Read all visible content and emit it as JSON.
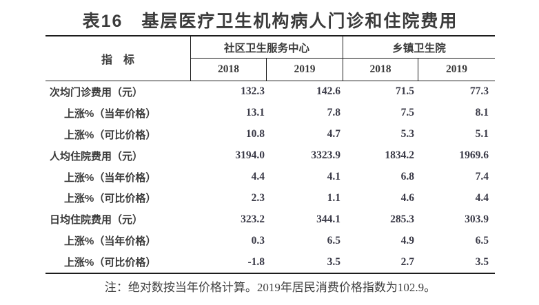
{
  "title": "表16　基层医疗卫生机构病人门诊和住院费用",
  "table": {
    "indicator_header": "指　标",
    "groups": [
      {
        "label": "社区卫生服务中心",
        "years": [
          "2018",
          "2019"
        ]
      },
      {
        "label": "乡镇卫生院",
        "years": [
          "2018",
          "2019"
        ]
      }
    ],
    "rows": [
      {
        "label": "次均门诊费用（元）",
        "indent": false,
        "values": [
          "132.3",
          "142.6",
          "71.5",
          "77.3"
        ]
      },
      {
        "label": "上涨%（当年价格）",
        "indent": true,
        "values": [
          "13.1",
          "7.8",
          "7.5",
          "8.1"
        ]
      },
      {
        "label": "上涨%（可比价格）",
        "indent": true,
        "values": [
          "10.8",
          "4.7",
          "5.3",
          "5.1"
        ]
      },
      {
        "label": "人均住院费用（元）",
        "indent": false,
        "values": [
          "3194.0",
          "3323.9",
          "1834.2",
          "1969.6"
        ]
      },
      {
        "label": "上涨%（当年价格）",
        "indent": true,
        "values": [
          "4.4",
          "4.1",
          "6.8",
          "7.4"
        ]
      },
      {
        "label": "上涨%（可比价格）",
        "indent": true,
        "values": [
          "2.3",
          "1.1",
          "4.6",
          "4.4"
        ]
      },
      {
        "label": "日均住院费用（元）",
        "indent": false,
        "values": [
          "323.2",
          "344.1",
          "285.3",
          "303.9"
        ]
      },
      {
        "label": "上涨%（当年价格）",
        "indent": true,
        "values": [
          "0.3",
          "6.5",
          "4.9",
          "6.5"
        ]
      },
      {
        "label": "上涨%（可比价格）",
        "indent": true,
        "values": [
          "-1.8",
          "3.5",
          "2.7",
          "3.5"
        ]
      }
    ]
  },
  "note": "注：绝对数按当年价格计算。2019年居民消费价格指数为102.9。",
  "colors": {
    "background": "#ffffff",
    "text": "#3b3b3b",
    "number_text": "#3a3a47",
    "border": "#1c1c1c"
  }
}
